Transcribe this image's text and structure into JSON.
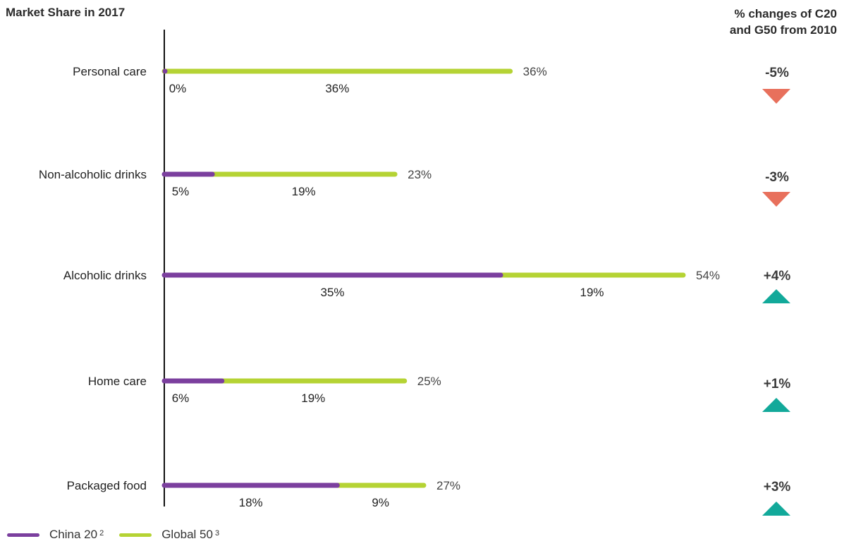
{
  "header": {
    "left_title": "Market Share in 2017",
    "right_title_line1": "% changes of C20",
    "right_title_line2": "and G50 from 2010"
  },
  "legend": {
    "china_label": "China 20",
    "china_sup": "2",
    "global_label": "Global 50",
    "global_sup": "3"
  },
  "colors": {
    "china": "#7b3f9e",
    "global": "#b5d334",
    "down": "#e8705c",
    "up": "#12a99a",
    "axis": "#111111",
    "text": "#333333"
  },
  "chart_data": {
    "type": "bar",
    "orientation": "horizontal",
    "stacked": true,
    "title": "Market Share in 2017",
    "xlim": [
      0,
      54
    ],
    "categories": [
      "Personal care",
      "Non-alcoholic drinks",
      "Alcoholic drinks",
      "Home care",
      "Packaged food"
    ],
    "series": [
      {
        "name": "China 20",
        "values": [
          0,
          5,
          35,
          6,
          18
        ],
        "labels": [
          "0%",
          "5%",
          "35%",
          "6%",
          "18%"
        ]
      },
      {
        "name": "Global 50",
        "values": [
          36,
          19,
          19,
          19,
          9
        ],
        "labels": [
          "36%",
          "19%",
          "19%",
          "19%",
          "9%"
        ]
      }
    ],
    "totals": [
      36,
      23,
      54,
      25,
      27
    ],
    "total_labels": [
      "36%",
      "23%",
      "54%",
      "25%",
      "27%"
    ],
    "changes_title": "% changes of C20 and G50 from 2010",
    "changes": [
      {
        "label": "-5%",
        "direction": "down"
      },
      {
        "label": "-3%",
        "direction": "down"
      },
      {
        "label": "+4%",
        "direction": "up"
      },
      {
        "label": "+1%",
        "direction": "up"
      },
      {
        "label": "+3%",
        "direction": "up"
      }
    ]
  }
}
